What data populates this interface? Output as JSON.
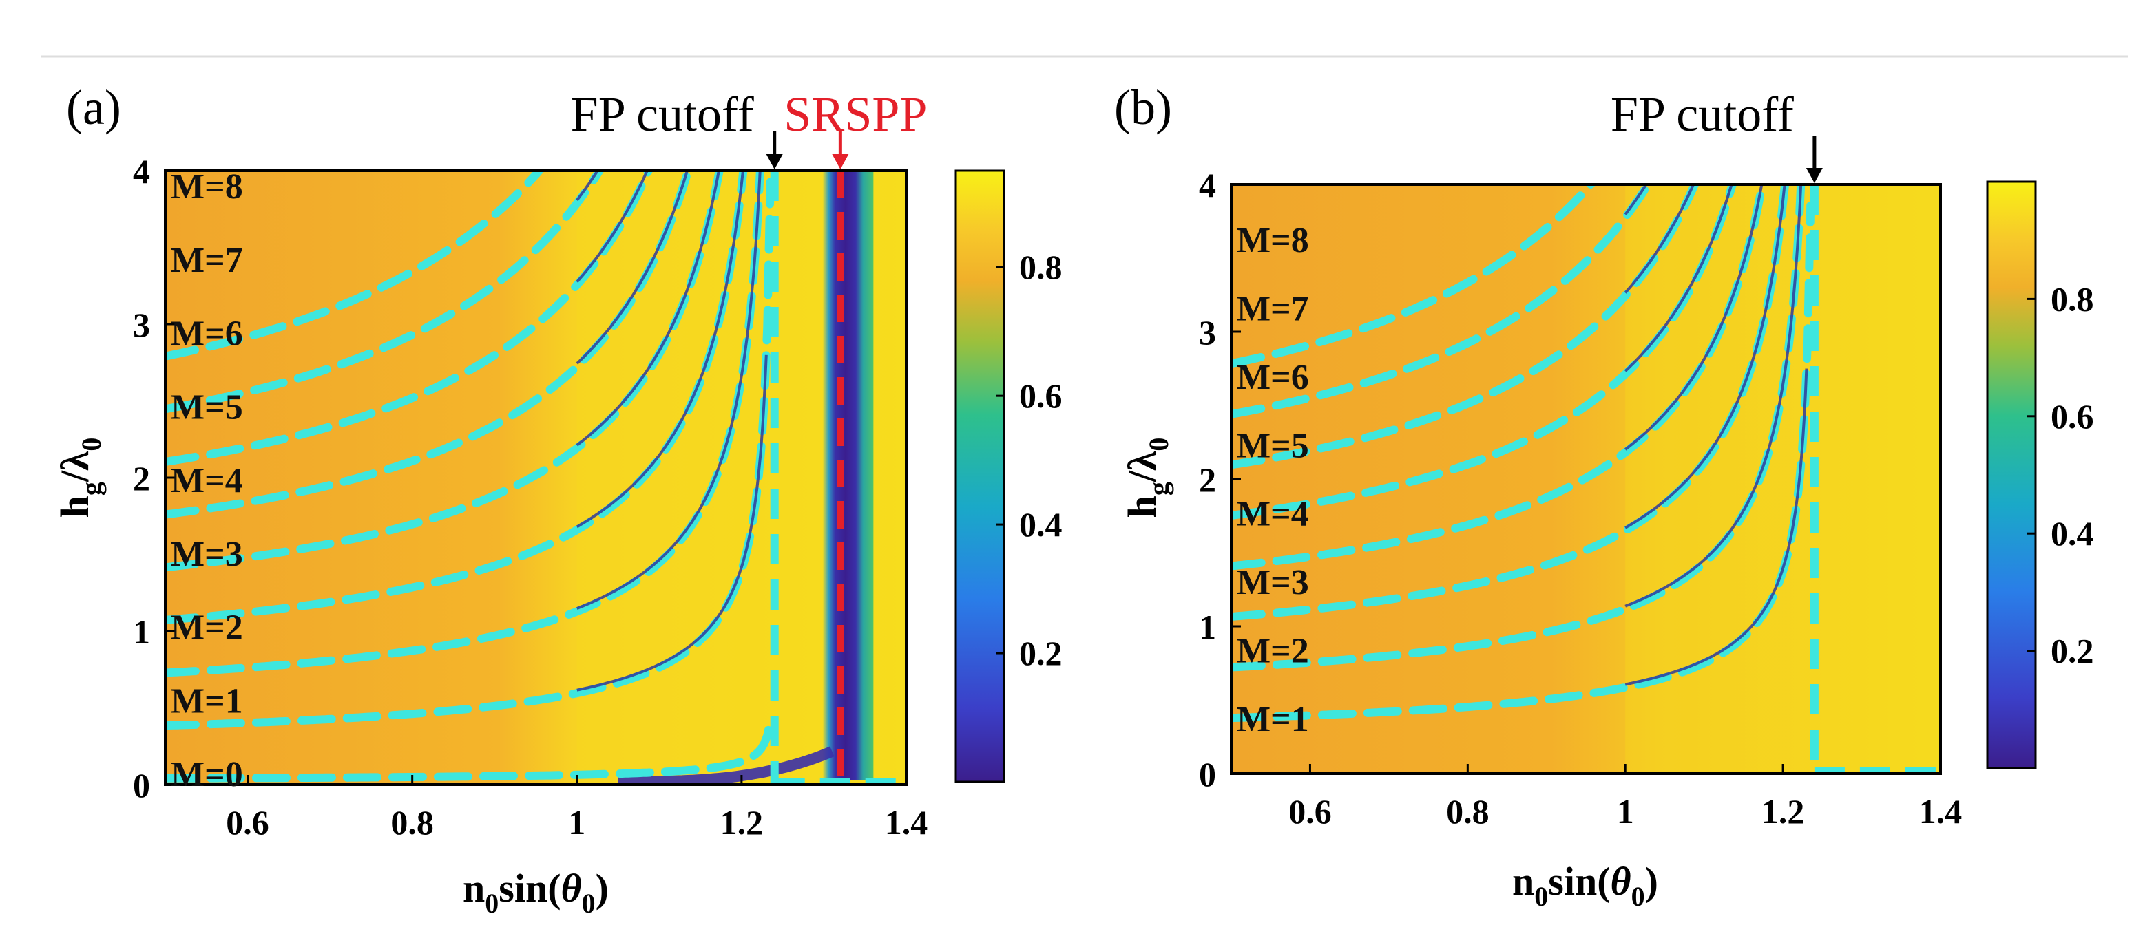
{
  "colors": {
    "background_mid": "#f2aa2c",
    "bright": "#f6de1e",
    "curve": "#2f3a9a",
    "dashed": "#3ee6de",
    "srspp": "#e4202a",
    "arrow_black": "#000000"
  },
  "chart_data": [
    {
      "type": "heatmap",
      "panel_label": "(a)",
      "xlabel": "n0sin(θ0)",
      "ylabel": "hg/λ0",
      "xlim": [
        0.5,
        1.4
      ],
      "ylim": [
        0,
        4
      ],
      "xticks": [
        "0.6",
        "0.8",
        "1",
        "1.2",
        "1.4"
      ],
      "yticks": [
        "0",
        "1",
        "2",
        "3",
        "4"
      ],
      "colorbar_ticks": [
        "0.2",
        "0.4",
        "0.6",
        "0.8"
      ],
      "colorbar_range": [
        0,
        0.95
      ],
      "mode_labels": [
        "M=0",
        "M=1",
        "M=2",
        "M=3",
        "M=4",
        "M=5",
        "M=6",
        "M=7",
        "M=8"
      ],
      "annotations": [
        {
          "text": "FP cutoff",
          "x": 1.24
        },
        {
          "text": "SRSPP",
          "x": 1.32
        }
      ],
      "fp_cutoff": 1.24,
      "srspp": 1.32,
      "modes_M": [
        0,
        1,
        2,
        3,
        4,
        5,
        6,
        7,
        8
      ]
    },
    {
      "type": "heatmap",
      "panel_label": "(b)",
      "xlabel": "n0sin(θ0)",
      "ylabel": "hg/λ0",
      "xlim": [
        0.5,
        1.4
      ],
      "ylim": [
        0,
        4
      ],
      "xticks": [
        "0.6",
        "0.8",
        "1",
        "1.2",
        "1.4"
      ],
      "yticks": [
        "0",
        "1",
        "2",
        "3",
        "4"
      ],
      "colorbar_ticks": [
        "0.2",
        "0.4",
        "0.6",
        "0.8"
      ],
      "colorbar_range": [
        0,
        1.0
      ],
      "mode_labels": [
        "M=1",
        "M=2",
        "M=3",
        "M=4",
        "M=5",
        "M=6",
        "M=7",
        "M=8"
      ],
      "annotations": [
        {
          "text": "FP cutoff",
          "x": 1.24
        }
      ],
      "fp_cutoff": 1.24,
      "modes_M": [
        1,
        2,
        3,
        4,
        5,
        6,
        7,
        8
      ]
    }
  ]
}
